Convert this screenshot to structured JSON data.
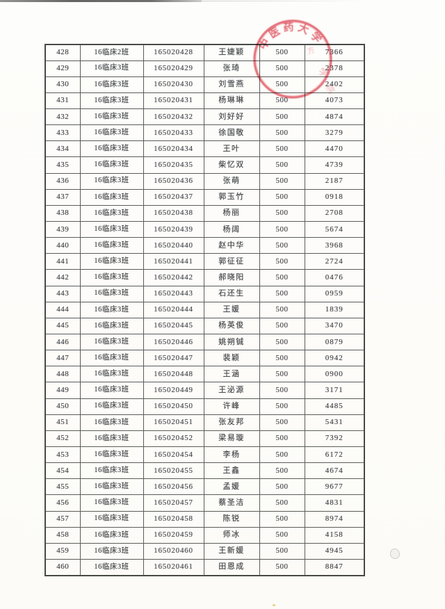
{
  "table": {
    "columns": [
      "serial",
      "class",
      "student_id",
      "name",
      "amount",
      "code"
    ],
    "rows": [
      [
        "428",
        "16临床2班",
        "165020428",
        "王婕颖",
        "500",
        "7366"
      ],
      [
        "429",
        "16临床3班",
        "165020429",
        "张琦",
        "500",
        "2378"
      ],
      [
        "430",
        "16临床3班",
        "165020430",
        "刘雪燕",
        "500",
        "2402"
      ],
      [
        "431",
        "16临床3班",
        "165020431",
        "杨琳琳",
        "500",
        "4073"
      ],
      [
        "432",
        "16临床3班",
        "165020432",
        "刘好好",
        "500",
        "4874"
      ],
      [
        "433",
        "16临床3班",
        "165020433",
        "徐国敬",
        "500",
        "3279"
      ],
      [
        "434",
        "16临床3班",
        "165020434",
        "王叶",
        "500",
        "4470"
      ],
      [
        "435",
        "16临床3班",
        "165020435",
        "柴忆双",
        "500",
        "4739"
      ],
      [
        "436",
        "16临床3班",
        "165020436",
        "张萌",
        "500",
        "2187"
      ],
      [
        "437",
        "16临床3班",
        "165020437",
        "郭玉竹",
        "500",
        "0918"
      ],
      [
        "438",
        "16临床3班",
        "165020438",
        "杨丽",
        "500",
        "2708"
      ],
      [
        "439",
        "16临床3班",
        "165020439",
        "杨阔",
        "500",
        "5674"
      ],
      [
        "440",
        "16临床3班",
        "165020440",
        "赵中华",
        "500",
        "3968"
      ],
      [
        "441",
        "16临床3班",
        "165020441",
        "郭征征",
        "500",
        "2724"
      ],
      [
        "442",
        "16临床3班",
        "165020442",
        "郝晓阳",
        "500",
        "0476"
      ],
      [
        "443",
        "16临床3班",
        "165020443",
        "石还生",
        "500",
        "0959"
      ],
      [
        "444",
        "16临床3班",
        "165020444",
        "王媛",
        "500",
        "1839"
      ],
      [
        "445",
        "16临床3班",
        "165020445",
        "杨英俊",
        "500",
        "3470"
      ],
      [
        "446",
        "16临床3班",
        "165020446",
        "姚朔铖",
        "500",
        "0879"
      ],
      [
        "447",
        "16临床3班",
        "165020447",
        "裴颖",
        "500",
        "0942"
      ],
      [
        "448",
        "16临床3班",
        "165020448",
        "王涵",
        "500",
        "0900"
      ],
      [
        "449",
        "16临床3班",
        "165020449",
        "王泌源",
        "500",
        "3171"
      ],
      [
        "450",
        "16临床3班",
        "165020450",
        "许峰",
        "500",
        "4485"
      ],
      [
        "451",
        "16临床3班",
        "165020451",
        "张友邦",
        "500",
        "5431"
      ],
      [
        "452",
        "16临床3班",
        "165020452",
        "梁易璇",
        "500",
        "7392"
      ],
      [
        "453",
        "16临床3班",
        "165020454",
        "李杨",
        "500",
        "6172"
      ],
      [
        "454",
        "16临床3班",
        "165020455",
        "王鑫",
        "500",
        "4674"
      ],
      [
        "455",
        "16临床3班",
        "165020456",
        "孟媛",
        "500",
        "9677"
      ],
      [
        "456",
        "16临床3班",
        "165020457",
        "蔡圣洁",
        "500",
        "4831"
      ],
      [
        "457",
        "16临床3班",
        "165020458",
        "陈锐",
        "500",
        "8974"
      ],
      [
        "458",
        "16临床3班",
        "165020459",
        "师冰",
        "500",
        "4158"
      ],
      [
        "459",
        "16临床3班",
        "165020460",
        "王新媛",
        "500",
        "4945"
      ],
      [
        "460",
        "16临床3班",
        "165020461",
        "田恩成",
        "500",
        "8847"
      ]
    ]
  },
  "seal": {
    "arc_text": "中医药大学东",
    "faint_marks": [
      "方",
      "学",
      "院"
    ],
    "color": "#e05663"
  },
  "colors": {
    "page_background": "#fdfdfb",
    "table_border": "#5b5d5a",
    "ink": "#47494c",
    "seal_red": "#e05663"
  }
}
